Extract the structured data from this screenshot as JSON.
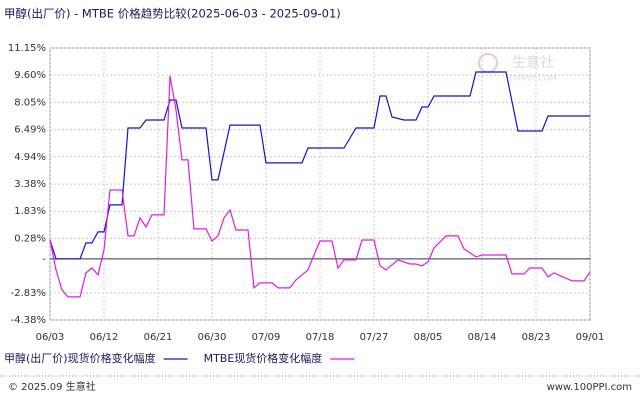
{
  "chart_data": {
    "type": "line",
    "title": "甲醇(出厂价) - MTBE 价格趋势比较(2025-06-03 - 2025-09-01)",
    "xlim": [
      "06/03",
      "09/01"
    ],
    "xticks": [
      "06/03",
      "06/12",
      "06/21",
      "06/30",
      "07/09",
      "07/18",
      "07/27",
      "08/05",
      "08/14",
      "08/23",
      "09/01"
    ],
    "ylim": [
      -4.38,
      11.15
    ],
    "yticks": [
      {
        "value": 11.15,
        "label": "11.15%"
      },
      {
        "value": 9.6,
        "label": "9.60%"
      },
      {
        "value": 8.05,
        "label": "8.05%"
      },
      {
        "value": 6.49,
        "label": "6.49%"
      },
      {
        "value": 4.94,
        "label": "4.94%"
      },
      {
        "value": 3.38,
        "label": "3.38%"
      },
      {
        "value": 1.83,
        "label": "1.83%"
      },
      {
        "value": 0.28,
        "label": "0.28%"
      },
      {
        "value": -0.89,
        "label": "-"
      },
      {
        "value": -2.83,
        "label": "-2.83%"
      },
      {
        "value": -4.38,
        "label": "-4.38%"
      }
    ],
    "grid": true,
    "series": [
      {
        "name": "甲醇(出厂价)现货价格变化幅度",
        "color": "#1414c8",
        "x": [
          "06/03",
          "06/04",
          "06/08",
          "06/09",
          "06/10",
          "06/11",
          "06/12",
          "06/13",
          "06/15",
          "06/16",
          "06/18",
          "06/19",
          "06/22",
          "06/23",
          "06/24",
          "06/25",
          "06/29",
          "06/30",
          "07/01",
          "07/03",
          "07/08",
          "07/09",
          "07/15",
          "07/16",
          "07/22",
          "07/24",
          "07/27",
          "07/28",
          "07/29",
          "07/30",
          "08/01",
          "08/03",
          "08/04",
          "08/05",
          "08/06",
          "08/12",
          "08/13",
          "08/18",
          "08/20",
          "08/24",
          "08/25",
          "09/01"
        ],
        "values": [
          0.19,
          -0.89,
          -0.89,
          0.02,
          0.02,
          0.65,
          0.65,
          2.19,
          2.19,
          6.58,
          6.58,
          7.04,
          7.04,
          8.18,
          8.18,
          6.58,
          6.58,
          3.62,
          3.62,
          6.75,
          6.75,
          4.59,
          4.59,
          5.44,
          5.44,
          6.58,
          6.58,
          8.41,
          8.41,
          7.21,
          7.04,
          7.04,
          7.78,
          7.78,
          8.41,
          8.41,
          9.78,
          9.78,
          6.41,
          6.41,
          7.27,
          7.27
        ]
      },
      {
        "name": "MTBE现货价格变化幅度",
        "color": "#e21ce2",
        "x": [
          "06/03",
          "06/04",
          "06/05",
          "06/06",
          "06/08",
          "06/09",
          "06/10",
          "06/11",
          "06/12",
          "06/13",
          "06/15",
          "06/16",
          "06/17",
          "06/18",
          "06/19",
          "06/20",
          "06/22",
          "06/23",
          "06/24",
          "06/25",
          "06/26",
          "06/27",
          "06/29",
          "06/30",
          "07/01",
          "07/02",
          "07/03",
          "07/04",
          "07/06",
          "07/07",
          "07/08",
          "07/10",
          "07/11",
          "07/13",
          "07/14",
          "07/16",
          "07/17",
          "07/18",
          "07/20",
          "07/21",
          "07/22",
          "07/24",
          "07/25",
          "07/27",
          "07/28",
          "07/29",
          "07/31",
          "08/02",
          "08/03",
          "08/04",
          "08/05",
          "08/06",
          "08/08",
          "08/10",
          "08/11",
          "08/13",
          "08/14",
          "08/18",
          "08/19",
          "08/21",
          "08/22",
          "08/24",
          "08/25",
          "08/26",
          "08/29",
          "08/31",
          "09/01"
        ],
        "values": [
          0.19,
          -1.52,
          -2.66,
          -3.06,
          -3.06,
          -1.69,
          -1.41,
          -1.81,
          -0.38,
          3.04,
          3.04,
          0.42,
          0.42,
          1.45,
          0.93,
          1.62,
          1.62,
          9.55,
          7.61,
          4.76,
          4.76,
          0.82,
          0.82,
          0.13,
          0.42,
          1.45,
          1.9,
          0.76,
          0.76,
          -2.55,
          -2.26,
          -2.26,
          -2.55,
          -2.55,
          -2.09,
          -1.52,
          -0.67,
          0.13,
          0.13,
          -1.41,
          -0.95,
          -0.95,
          0.19,
          0.19,
          -1.29,
          -1.52,
          -0.95,
          -1.18,
          -1.18,
          -1.29,
          -1.07,
          -0.27,
          0.42,
          0.42,
          -0.32,
          -0.78,
          -0.67,
          -0.67,
          -1.75,
          -1.75,
          -1.41,
          -1.41,
          -1.92,
          -1.69,
          -2.15,
          -2.15,
          -1.64
        ]
      }
    ],
    "watermark": {
      "name": "生意社",
      "url": "100PPI.COM"
    },
    "footer": {
      "left": "© 2025.09 生意社",
      "right": "www.100PPI.com"
    }
  }
}
